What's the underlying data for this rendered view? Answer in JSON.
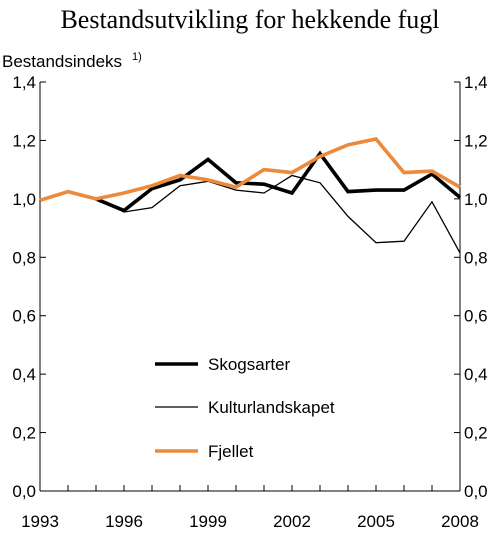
{
  "chart_data": {
    "type": "line",
    "title": "Bestandsutvikling for hekkende fugl",
    "ylabel": "Bestandsindeks",
    "ylabel_note": "1)",
    "xlabel": "",
    "xlim": [
      1993,
      2008
    ],
    "ylim": [
      0,
      1.4
    ],
    "x_ticks": [
      1993,
      1996,
      1999,
      2002,
      2005,
      2008
    ],
    "x_tick_labels": [
      "1993",
      "1996",
      "1999",
      "2002",
      "2005",
      "2008"
    ],
    "y_ticks": [
      0,
      0.2,
      0.4,
      0.6,
      0.8,
      1.0,
      1.2,
      1.4
    ],
    "y_tick_labels": [
      "0,0",
      "0,2",
      "0,4",
      "0,6",
      "0,8",
      "1,0",
      "1,2",
      "1,4"
    ],
    "grid": false,
    "right_axis": true,
    "legend_position": "lower-center",
    "series": [
      {
        "name": "Skogsarter",
        "color": "#000000",
        "style": "thick",
        "x": [
          1995,
          1996,
          1997,
          1998,
          1999,
          2000,
          2001,
          2002,
          2003,
          2004,
          2005,
          2006,
          2007,
          2008
        ],
        "y": [
          1.0,
          0.96,
          1.035,
          1.065,
          1.135,
          1.055,
          1.05,
          1.02,
          1.155,
          1.025,
          1.03,
          1.03,
          1.085,
          1.005
        ]
      },
      {
        "name": "Kulturlandskapet",
        "color": "#000000",
        "style": "thin",
        "x": [
          1995,
          1996,
          1997,
          1998,
          1999,
          2000,
          2001,
          2002,
          2003,
          2004,
          2005,
          2006,
          2007,
          2008
        ],
        "y": [
          1.0,
          0.955,
          0.97,
          1.045,
          1.06,
          1.03,
          1.02,
          1.08,
          1.055,
          0.94,
          0.85,
          0.855,
          0.99,
          0.815
        ]
      },
      {
        "name": "Fjellet",
        "color": "#ec8a3c",
        "style": "thick",
        "x": [
          1993,
          1994,
          1995,
          1996,
          1997,
          1998,
          1999,
          2000,
          2001,
          2002,
          2003,
          2004,
          2005,
          2006,
          2007,
          2008
        ],
        "y": [
          0.995,
          1.025,
          1.0,
          1.02,
          1.045,
          1.08,
          1.065,
          1.04,
          1.1,
          1.09,
          1.145,
          1.185,
          1.205,
          1.09,
          1.095,
          1.04
        ]
      }
    ]
  }
}
